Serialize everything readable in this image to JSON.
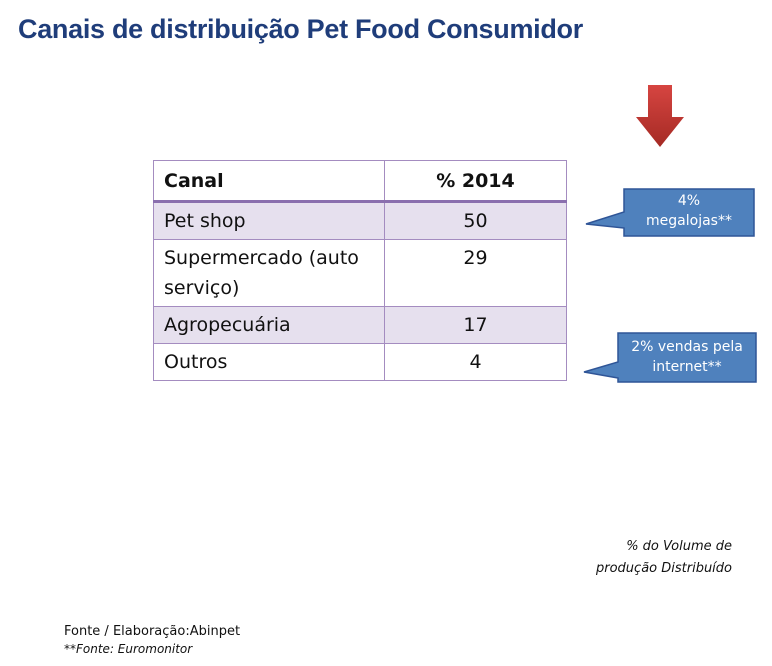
{
  "title": "Canais de distribuição Pet Food Consumidor",
  "table": {
    "headers": [
      "Canal",
      "% 2014"
    ],
    "rows": [
      {
        "canal": "Pet shop",
        "value": "50"
      },
      {
        "canal": "Supermercado (auto serviço)",
        "value": "29"
      },
      {
        "canal": "Agropecuária",
        "value": "17"
      },
      {
        "canal": "Outros",
        "value": "4"
      }
    ]
  },
  "callouts": {
    "megalojas": {
      "line1": "4%",
      "line2": "megalojas**"
    },
    "internet": {
      "line1": "2% vendas pela",
      "line2": "internet**"
    }
  },
  "note": {
    "line1": "% do Volume de",
    "line2": "produção Distribuído"
  },
  "sources": {
    "primary": "Fonte / Elaboração:Abinpet",
    "secondary": "**Fonte: Euromonitor"
  },
  "colors": {
    "title": "#1f3d7a",
    "callout": "#4f81bd",
    "callout_border": "#2f5597",
    "arrow": "#c0392b",
    "row_shade": "#e6e0ee",
    "table_border": "#a48cc0"
  },
  "icons": {
    "arrow": "down-arrow-icon"
  }
}
